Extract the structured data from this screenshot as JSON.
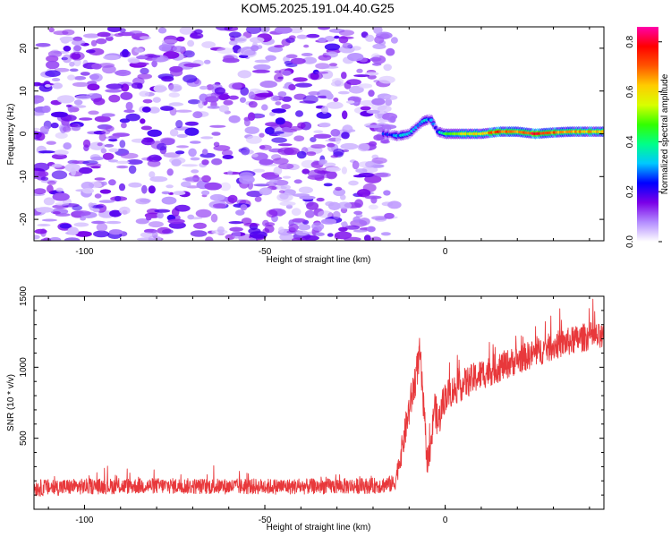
{
  "title": "KOM5.2025.191.04.40.G25",
  "chart_data": [
    {
      "type": "heatmap",
      "xlabel": "Height of straight line (km)",
      "ylabel": "Frequency (Hz)",
      "xlim": [
        -114,
        44
      ],
      "ylim": [
        -25,
        25
      ],
      "xticks": [
        -100,
        -50,
        0
      ],
      "yticks": [
        -20,
        -10,
        0,
        10,
        20
      ],
      "colorbar": {
        "label": "Normalized spectral amplitude",
        "range": [
          0,
          0.86
        ],
        "ticks": [
          0.0,
          0.2,
          0.4,
          0.6,
          0.8
        ],
        "colors": [
          "#ffffff",
          "#b38cff",
          "#7b00e8",
          "#0000ff",
          "#00c8ff",
          "#00ff88",
          "#33ff00",
          "#d8ff00",
          "#ffcc00",
          "#ff5500",
          "#ff0000",
          "#ff00aa"
        ]
      },
      "noise_region": {
        "x_start": -114,
        "x_end": -14,
        "freq_range": [
          -25,
          25
        ],
        "amplitude_range": [
          0.03,
          0.2
        ]
      },
      "carrier": [
        {
          "x": -17,
          "freq": 0.0,
          "amplitude": 0.22
        },
        {
          "x": -13,
          "freq": -0.5,
          "amplitude": 0.28
        },
        {
          "x": -10,
          "freq": 0.0,
          "amplitude": 0.35
        },
        {
          "x": -8,
          "freq": 1.5,
          "amplitude": 0.32
        },
        {
          "x": -6,
          "freq": 3.0,
          "amplitude": 0.3
        },
        {
          "x": -4,
          "freq": 3.5,
          "amplitude": 0.28
        },
        {
          "x": -2,
          "freq": 0.5,
          "amplitude": 0.25
        },
        {
          "x": 0,
          "freq": 0.0,
          "amplitude": 0.45
        },
        {
          "x": 5,
          "freq": 0.0,
          "amplitude": 0.55
        },
        {
          "x": 10,
          "freq": 0.0,
          "amplitude": 0.6
        },
        {
          "x": 15,
          "freq": 0.5,
          "amplitude": 0.72
        },
        {
          "x": 20,
          "freq": 0.5,
          "amplitude": 0.65
        },
        {
          "x": 25,
          "freq": 0.0,
          "amplitude": 0.78
        },
        {
          "x": 30,
          "freq": 0.3,
          "amplitude": 0.7
        },
        {
          "x": 35,
          "freq": 0.5,
          "amplitude": 0.66
        },
        {
          "x": 40,
          "freq": 0.5,
          "amplitude": 0.62
        },
        {
          "x": 44,
          "freq": 0.5,
          "amplitude": 0.6
        }
      ]
    },
    {
      "type": "line",
      "xlabel": "Height of straight line (km)",
      "ylabel": "SNR (10 * v/v)",
      "xlim": [
        -114,
        44
      ],
      "ylim": [
        0,
        1500
      ],
      "xticks": [
        -100,
        -50,
        0
      ],
      "yticks": [
        500,
        1000,
        1500
      ],
      "color": "#e8383b",
      "series": [
        {
          "name": "",
          "x": [
            -114,
            -100,
            -80,
            -60,
            -40,
            -20,
            -14,
            -12,
            -10,
            -8,
            -7,
            -6,
            -5,
            -4,
            -3,
            -2,
            0,
            5,
            10,
            20,
            30,
            40,
            44
          ],
          "y": [
            150,
            160,
            165,
            160,
            160,
            165,
            180,
            420,
            700,
            950,
            1100,
            700,
            350,
            400,
            750,
            600,
            800,
            880,
            950,
            1050,
            1150,
            1220,
            1200
          ],
          "noise_amplitude": [
            120,
            110,
            110,
            110,
            110,
            110,
            120,
            200,
            250,
            250,
            250,
            250,
            200,
            200,
            250,
            250,
            220,
            220,
            220,
            200,
            200,
            200,
            200
          ]
        }
      ]
    }
  ]
}
